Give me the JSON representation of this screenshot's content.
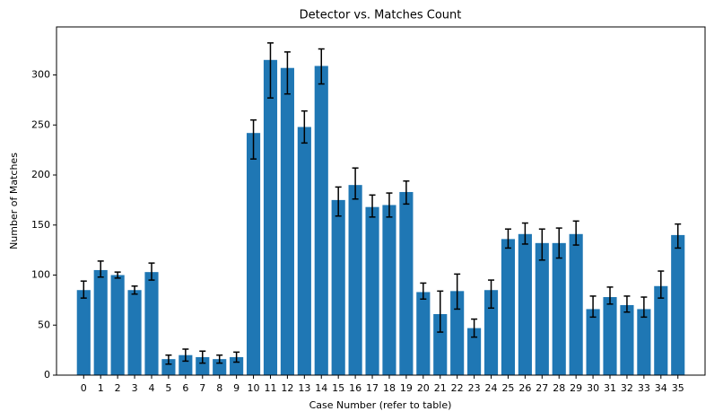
{
  "chart_data": {
    "type": "bar",
    "title": "Detector vs. Matches Count",
    "x_label": "Case Number (refer to table)",
    "y_label": "Number of Matches",
    "categories": [
      "0",
      "1",
      "2",
      "3",
      "4",
      "5",
      "6",
      "7",
      "8",
      "9",
      "10",
      "11",
      "12",
      "13",
      "14",
      "15",
      "16",
      "17",
      "18",
      "19",
      "20",
      "21",
      "22",
      "23",
      "24",
      "25",
      "26",
      "27",
      "28",
      "29",
      "30",
      "31",
      "32",
      "33",
      "34",
      "35"
    ],
    "values": [
      85,
      105,
      100,
      85,
      103,
      16,
      20,
      18,
      16,
      18,
      242,
      315,
      307,
      248,
      309,
      175,
      190,
      168,
      170,
      183,
      83,
      61,
      84,
      47,
      85,
      136,
      141,
      132,
      132,
      141,
      66,
      78,
      70,
      66,
      89,
      140
    ],
    "error_lower": [
      8,
      7,
      3,
      4,
      8,
      5,
      6,
      6,
      4,
      5,
      26,
      38,
      26,
      16,
      18,
      16,
      14,
      10,
      12,
      12,
      7,
      18,
      18,
      9,
      18,
      9,
      10,
      17,
      15,
      11,
      8,
      7,
      7,
      8,
      12,
      13
    ],
    "error_upper": [
      9,
      9,
      3,
      4,
      9,
      4,
      6,
      6,
      4,
      5,
      13,
      17,
      16,
      16,
      17,
      13,
      17,
      12,
      12,
      11,
      9,
      23,
      17,
      9,
      10,
      10,
      11,
      14,
      15,
      13,
      13,
      10,
      9,
      12,
      15,
      11
    ],
    "color": "#1f77b4",
    "error_color": "#000000",
    "ylim": [
      0,
      348
    ],
    "yticks": [
      0,
      50,
      100,
      150,
      200,
      250,
      300
    ]
  }
}
